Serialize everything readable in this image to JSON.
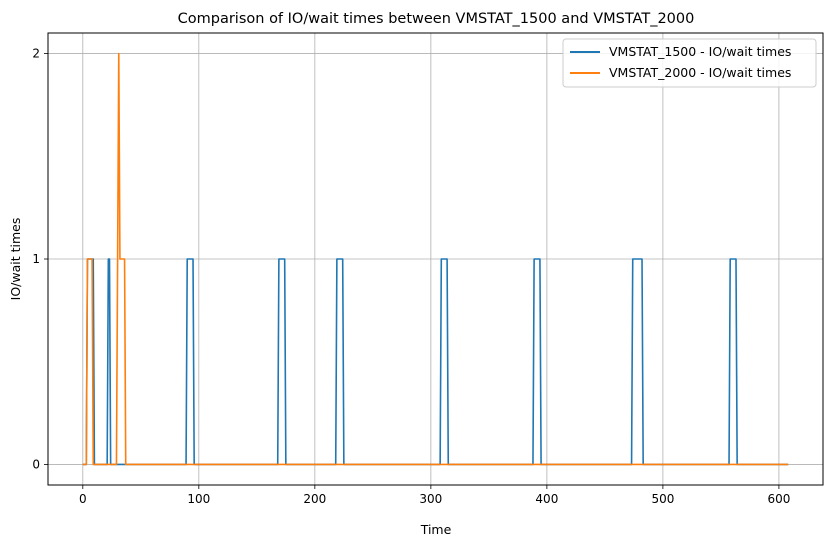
{
  "chart_data": {
    "type": "line",
    "title": "Comparison of IO/wait times between VMSTAT_1500 and VMSTAT_2000",
    "xlabel": "Time",
    "ylabel": "IO/wait times",
    "xlim": [
      -30,
      638
    ],
    "ylim": [
      -0.1,
      2.1
    ],
    "xticks": [
      0,
      100,
      200,
      300,
      400,
      500,
      600
    ],
    "yticks": [
      0,
      1,
      2
    ],
    "grid": true,
    "legend_position": "top-right",
    "series": [
      {
        "name": "VMSTAT_1500 - IO/wait times",
        "color": "#1f77b4",
        "x": [
          0,
          3,
          4,
          9,
          10,
          21,
          22,
          23,
          24,
          89,
          90,
          95,
          96,
          168,
          169,
          174,
          175,
          218,
          219,
          224,
          225,
          308,
          309,
          314,
          315,
          388,
          389,
          394,
          395,
          473,
          474,
          482,
          483,
          557,
          558,
          563,
          564,
          608
        ],
        "values": [
          0,
          0,
          1,
          1,
          0,
          0,
          1,
          1,
          0,
          0,
          1,
          1,
          0,
          0,
          1,
          1,
          0,
          0,
          1,
          1,
          0,
          0,
          1,
          1,
          0,
          0,
          1,
          1,
          0,
          0,
          1,
          1,
          0,
          0,
          1,
          1,
          0,
          0
        ]
      },
      {
        "name": "VMSTAT_2000 - IO/wait times",
        "color": "#ff7f0e",
        "x": [
          0,
          3,
          4,
          8,
          9,
          29,
          30,
          31,
          32,
          33,
          36,
          37,
          608
        ],
        "values": [
          0,
          0,
          1,
          1,
          0,
          0,
          1,
          2,
          1,
          1,
          1,
          0,
          0
        ]
      }
    ]
  }
}
